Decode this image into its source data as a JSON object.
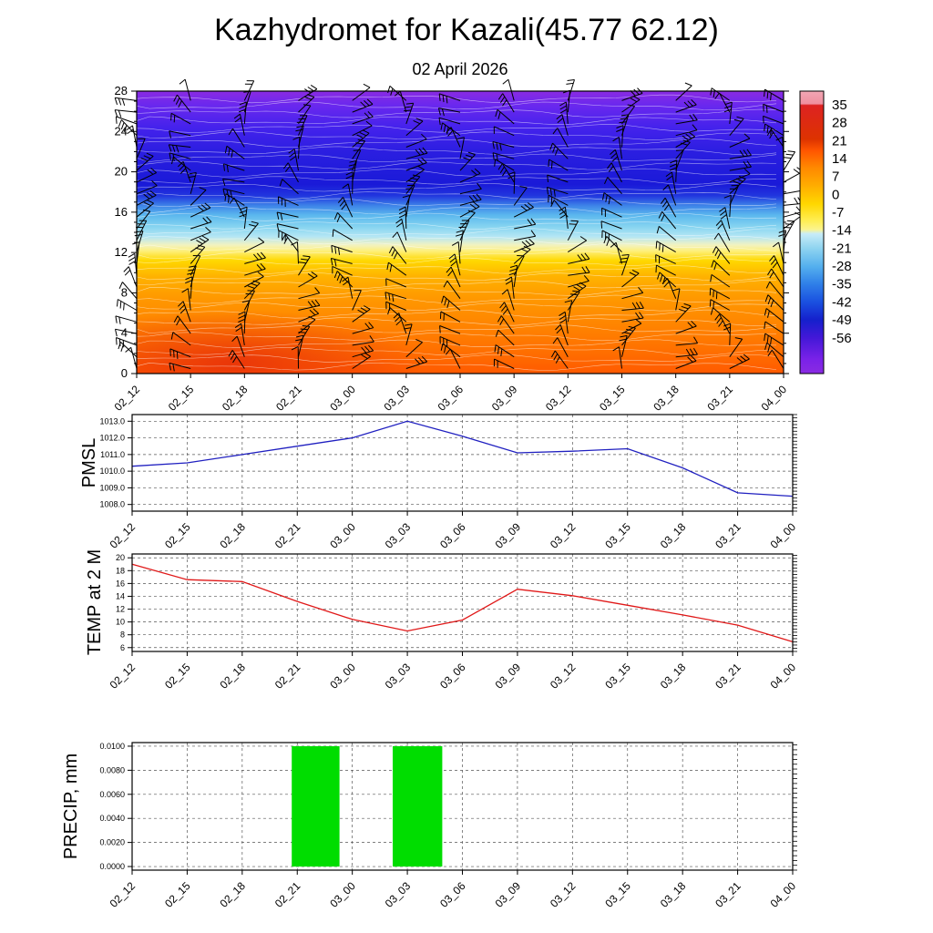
{
  "title": "Kazhydromet for Kazali(45.77 62.12)",
  "subtitle": "02 April 2026",
  "time_labels": [
    "02_12",
    "02_15",
    "02_18",
    "02_21",
    "03_00",
    "03_03",
    "03_06",
    "03_09",
    "03_12",
    "03_15",
    "03_18",
    "03_21",
    "04_00"
  ],
  "chart_data": [
    {
      "name": "temperature-height-cross-section",
      "type": "heatmap",
      "title": "",
      "ylim": [
        0,
        28
      ],
      "y_ticks": [
        0,
        4,
        8,
        12,
        16,
        20,
        24,
        28
      ],
      "x_tick_labels_ref": "time_labels",
      "wind_barbs_overlay": true,
      "contour_lines": "white",
      "field_gradient_stops": [
        [
          0,
          "#8a2be2"
        ],
        [
          0.05,
          "#6a28ee"
        ],
        [
          0.13,
          "#4422ec"
        ],
        [
          0.22,
          "#2a1ee0"
        ],
        [
          0.33,
          "#1a1ad8"
        ],
        [
          0.37,
          "#2136de"
        ],
        [
          0.405,
          "#3d82e8"
        ],
        [
          0.44,
          "#5cb8ee"
        ],
        [
          0.48,
          "#86d4f0"
        ],
        [
          0.515,
          "#b4e6f4"
        ],
        [
          0.545,
          "#f2f2c0"
        ],
        [
          0.565,
          "#fdf07e"
        ],
        [
          0.6,
          "#ffd800"
        ],
        [
          0.655,
          "#ffb300"
        ],
        [
          0.73,
          "#ff9900"
        ],
        [
          0.83,
          "#ff8400"
        ],
        [
          0.93,
          "#ff6d00"
        ],
        [
          1,
          "#ff5a00"
        ]
      ],
      "colorbar": {
        "ticks": [
          35,
          28,
          21,
          14,
          7,
          0,
          -7,
          -14,
          -21,
          -28,
          -35,
          -42,
          -49,
          -56
        ],
        "gradient_stops": [
          [
            0,
            "#f2a6b4"
          ],
          [
            0.045,
            "#ef8f9f"
          ],
          [
            0.05,
            "#dd2222"
          ],
          [
            0.17,
            "#dd3300"
          ],
          [
            0.21,
            "#ff5500"
          ],
          [
            0.27,
            "#ff8800"
          ],
          [
            0.33,
            "#ffaa00"
          ],
          [
            0.4,
            "#ffd700"
          ],
          [
            0.46,
            "#ffee55"
          ],
          [
            0.49,
            "#fbf48e"
          ],
          [
            0.505,
            "#c8ecf8"
          ],
          [
            0.556,
            "#8fd4f0"
          ],
          [
            0.62,
            "#55b0ee"
          ],
          [
            0.683,
            "#2f7fe8"
          ],
          [
            0.747,
            "#1a50e0"
          ],
          [
            0.81,
            "#1520cc"
          ],
          [
            0.874,
            "#4418d8"
          ],
          [
            0.95,
            "#7a22e8"
          ],
          [
            1,
            "#8a2be2"
          ]
        ]
      }
    },
    {
      "name": "pmsl",
      "label": "PMSL",
      "type": "line",
      "color": "#2020c0",
      "ylim": [
        1007.6,
        1013.4
      ],
      "y_ticks": [
        1008.0,
        1009.0,
        1010.0,
        1011.0,
        1012.0,
        1013.0
      ],
      "values": [
        1010.3,
        1010.5,
        1011.0,
        1011.5,
        1012.0,
        1013.0,
        1012.1,
        1011.1,
        1011.2,
        1011.35,
        1010.2,
        1008.7,
        1008.5
      ]
    },
    {
      "name": "temp-at-2m",
      "label": "TEMP at 2 M",
      "type": "line",
      "color": "#e01818",
      "ylim": [
        5.4,
        20.6
      ],
      "y_ticks": [
        6,
        8,
        10,
        12,
        14,
        16,
        18,
        20
      ],
      "values": [
        19.0,
        16.6,
        16.3,
        13.2,
        10.4,
        8.6,
        10.3,
        15.1,
        14.1,
        12.6,
        11.1,
        9.5,
        6.9
      ]
    },
    {
      "name": "precip",
      "label": "PRECIP, mm",
      "type": "bar",
      "color": "#00dd00",
      "ylim": [
        -0.0003,
        0.0103
      ],
      "y_ticks": [
        0.0,
        0.002,
        0.004,
        0.006,
        0.008,
        0.01
      ],
      "hours_domain": [
        0,
        36
      ],
      "bars": [
        {
          "start_hour": 8.7,
          "end_hour": 11.3,
          "value": 0.01
        },
        {
          "start_hour": 14.2,
          "end_hour": 16.9,
          "value": 0.01
        }
      ]
    }
  ]
}
